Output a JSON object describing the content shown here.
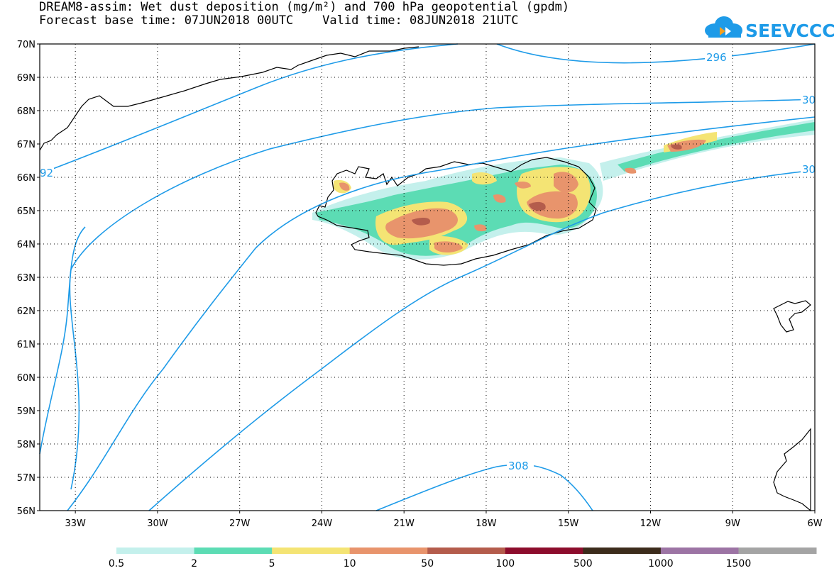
{
  "title_line1": "DREAM8-assim: Wet dust deposition (mg/m²) and 700 hPa geopotential (gpdm)",
  "title_line2": "Forecast base time: 07JUN2018 00UTC    Valid time: 08JUN2018 21UTC",
  "logo": {
    "text": "SEEVCCC",
    "icon": "cloud-logo-icon",
    "color": "#1e9be8"
  },
  "map": {
    "lat_range": [
      56,
      70
    ],
    "lon_range": [
      -34.3,
      -6
    ],
    "lat_labels": [
      "70N",
      "69N",
      "68N",
      "67N",
      "66N",
      "65N",
      "64N",
      "63N",
      "62N",
      "61N",
      "60N",
      "59N",
      "58N",
      "57N",
      "56N"
    ],
    "lon_labels": [
      "33W",
      "30W",
      "27W",
      "24W",
      "21W",
      "18W",
      "15W",
      "12W",
      "9W",
      "6W"
    ],
    "contour_color": "#1e9be8",
    "contour_labels": [
      "296",
      "30",
      "30",
      "92",
      "308"
    ]
  },
  "colorbar": {
    "labels": [
      "0.5",
      "2",
      "5",
      "10",
      "50",
      "100",
      "500",
      "1000",
      "1500"
    ],
    "colors": [
      "#c4f0ec",
      "#5cdcb4",
      "#f4e474",
      "#e8946c",
      "#b45c4c",
      "#8c0c2c",
      "#3c2c1c",
      "#9c74a4",
      "#a4a4a4"
    ]
  }
}
